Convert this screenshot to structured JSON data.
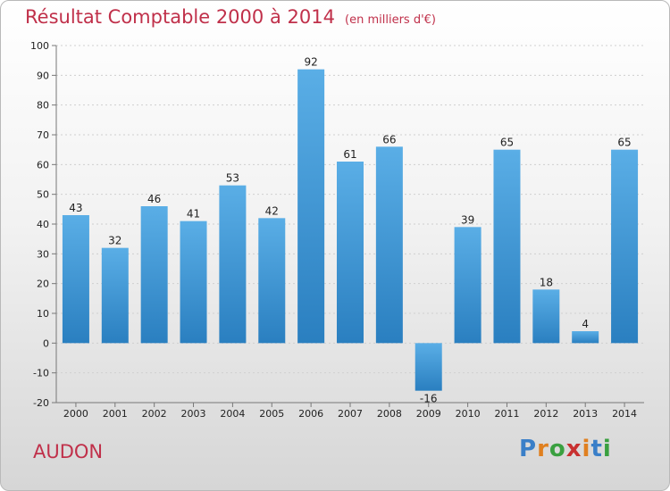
{
  "header": {
    "title": "Résultat Comptable 2000 à 2014",
    "subtitle": "(en milliers d'€)"
  },
  "footer": {
    "place": "AUDON",
    "logo": "Proxiti"
  },
  "colors": {
    "title": "#c0304a",
    "bar_top": "#5aaee6",
    "bar_bottom": "#2a7fc0",
    "logo_letters": [
      "#3a7fc8",
      "#e08020",
      "#3aa040",
      "#c83030",
      "#e08020",
      "#3a7fc8",
      "#3aa040"
    ]
  },
  "chart_data": {
    "type": "bar",
    "categories": [
      "2000",
      "2001",
      "2002",
      "2003",
      "2004",
      "2005",
      "2006",
      "2007",
      "2008",
      "2009",
      "2010",
      "2011",
      "2012",
      "2013",
      "2014"
    ],
    "values": [
      43,
      32,
      46,
      41,
      53,
      42,
      92,
      61,
      66,
      -16,
      39,
      65,
      18,
      4,
      65
    ],
    "ylim": [
      -20,
      100
    ],
    "yticks": [
      -20,
      -10,
      0,
      10,
      20,
      30,
      40,
      50,
      60,
      70,
      80,
      90,
      100
    ],
    "grid": true,
    "title": "Résultat Comptable 2000 à 2014",
    "xlabel": "",
    "ylabel": ""
  }
}
